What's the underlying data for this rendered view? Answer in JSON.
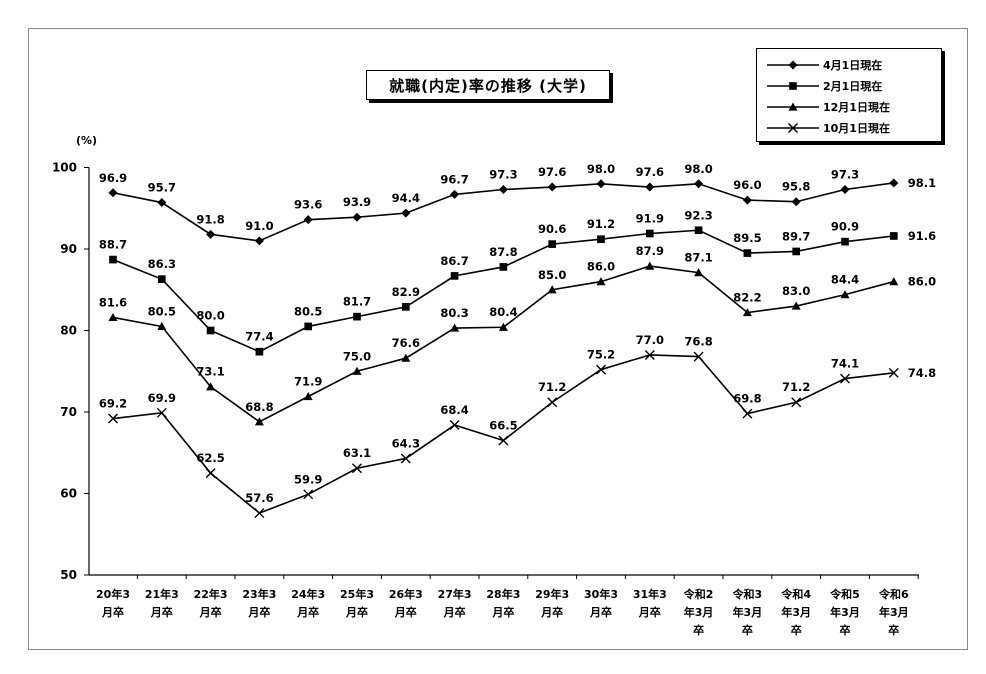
{
  "chart_data": {
    "type": "line",
    "title": "就職(内定)率の推移 (大学)",
    "unit_label": "(%)",
    "ylim": [
      50,
      100
    ],
    "yticks": [
      50,
      60,
      70,
      80,
      90,
      100
    ],
    "grid": false,
    "legend_position": "top-right",
    "categories": [
      [
        "20年3",
        "月卒"
      ],
      [
        "21年3",
        "月卒"
      ],
      [
        "22年3",
        "月卒"
      ],
      [
        "23年3",
        "月卒"
      ],
      [
        "24年3",
        "月卒"
      ],
      [
        "25年3",
        "月卒"
      ],
      [
        "26年3",
        "月卒"
      ],
      [
        "27年3",
        "月卒"
      ],
      [
        "28年3",
        "月卒"
      ],
      [
        "29年3",
        "月卒"
      ],
      [
        "30年3",
        "月卒"
      ],
      [
        "31年3",
        "月卒"
      ],
      [
        "令和2",
        "年3月",
        "卒"
      ],
      [
        "令和3",
        "年3月",
        "卒"
      ],
      [
        "令和4",
        "年3月",
        "卒"
      ],
      [
        "令和5",
        "年3月",
        "卒"
      ],
      [
        "令和6",
        "年3月",
        "卒"
      ]
    ],
    "series": [
      {
        "name": "4月1日現在",
        "marker": "diamond",
        "values": [
          96.9,
          95.7,
          91.8,
          91.0,
          93.6,
          93.9,
          94.4,
          96.7,
          97.3,
          97.6,
          98.0,
          97.6,
          98.0,
          96.0,
          95.8,
          97.3,
          98.1
        ]
      },
      {
        "name": "2月1日現在",
        "marker": "square",
        "values": [
          88.7,
          86.3,
          80.0,
          77.4,
          80.5,
          81.7,
          82.9,
          86.7,
          87.8,
          90.6,
          91.2,
          91.9,
          92.3,
          89.5,
          89.7,
          90.9,
          91.6
        ]
      },
      {
        "name": "12月1日現在",
        "marker": "triangle",
        "values": [
          81.6,
          80.5,
          73.1,
          68.8,
          71.9,
          75.0,
          76.6,
          80.3,
          80.4,
          85.0,
          86.0,
          87.9,
          87.1,
          82.2,
          83.0,
          84.4,
          86.0
        ]
      },
      {
        "name": "10月1日現在",
        "marker": "x",
        "values": [
          69.2,
          69.9,
          62.5,
          57.6,
          59.9,
          63.1,
          64.3,
          68.4,
          66.5,
          71.2,
          75.2,
          77.0,
          76.8,
          69.8,
          71.2,
          74.1,
          74.8
        ]
      }
    ],
    "colors": {
      "line": "#000000",
      "axis": "#000000",
      "frame": "#8a8a8a"
    }
  }
}
